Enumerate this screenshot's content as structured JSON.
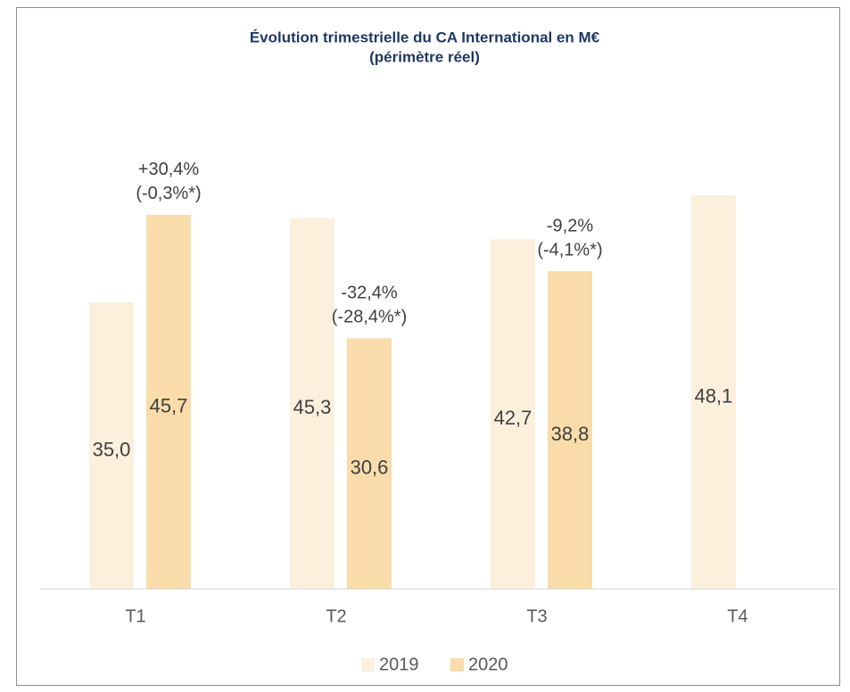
{
  "chart_data": {
    "type": "bar",
    "title": [
      "Évolution trimestrielle du CA International en M€",
      "(périmètre réel)"
    ],
    "categories": [
      "T1",
      "T2",
      "T3",
      "T4"
    ],
    "series": [
      {
        "name": "2019",
        "color": "#fcefdc",
        "values": [
          35.0,
          45.3,
          42.7,
          48.1
        ],
        "value_labels": [
          "35,0",
          "45,3",
          "42,7",
          "48,1"
        ]
      },
      {
        "name": "2020",
        "color": "#f9dcaa",
        "values": [
          45.7,
          30.6,
          38.8,
          null
        ],
        "value_labels": [
          "45,7",
          "30,6",
          "38,8",
          null
        ]
      }
    ],
    "annotations": [
      [
        "+30,4%",
        "(-0,3%*)"
      ],
      [
        "-32,4%",
        "(-28,4%*)"
      ],
      [
        "-9,2%",
        "(-4,1%*)"
      ]
    ],
    "legend": "bottom"
  }
}
